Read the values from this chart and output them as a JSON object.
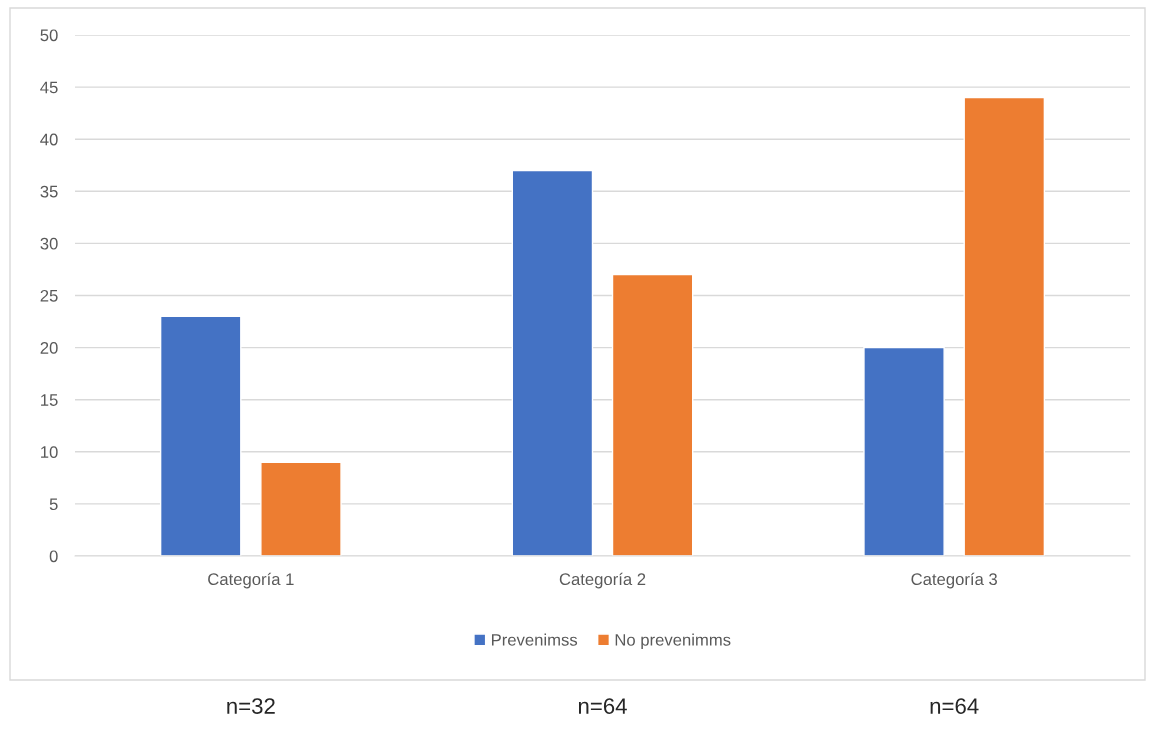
{
  "chart_data": {
    "type": "bar",
    "categories": [
      "Categoría 1",
      "Categoría 2",
      "Categoría 3"
    ],
    "series": [
      {
        "name": "Prevenimss",
        "color": "#4472c4",
        "values": [
          23,
          37,
          20
        ]
      },
      {
        "name": "No prevenimms",
        "color": "#ed7d31",
        "values": [
          9,
          27,
          44
        ]
      }
    ],
    "ylim": [
      0,
      50
    ],
    "yticks": [
      0,
      5,
      10,
      15,
      20,
      25,
      30,
      35,
      40,
      45,
      50
    ],
    "grid": "y",
    "legend": "bottom",
    "annotations": [
      "n=32",
      "n=64",
      "n=64"
    ]
  }
}
